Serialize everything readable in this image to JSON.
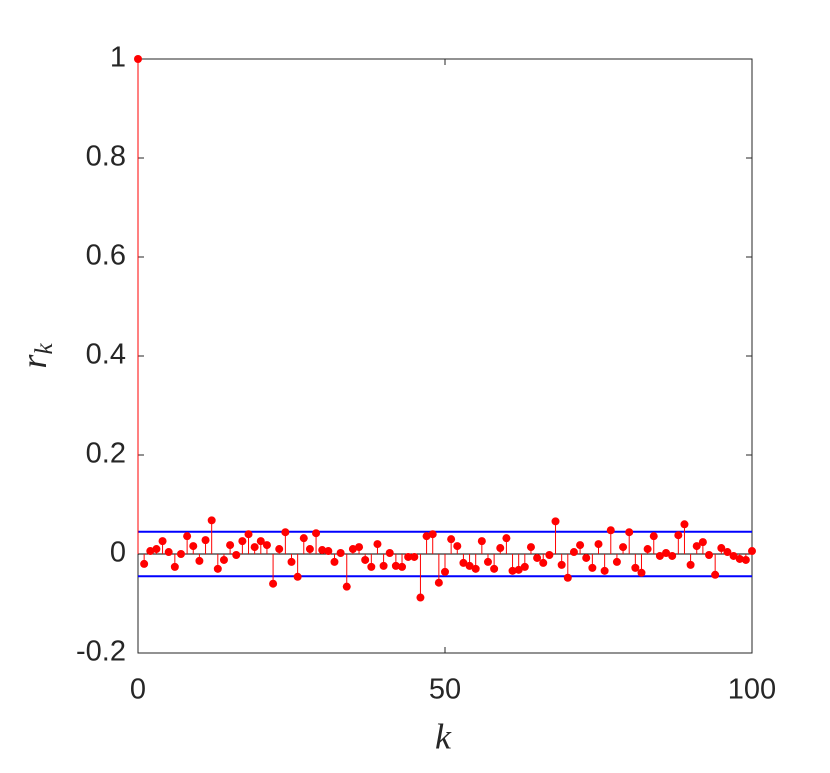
{
  "chart_data": {
    "type": "stem",
    "xlabel": "k",
    "ylabel": "r",
    "ylabel_sub": "k",
    "x": [
      0,
      1,
      2,
      3,
      4,
      5,
      6,
      7,
      8,
      9,
      10,
      11,
      12,
      13,
      14,
      15,
      16,
      17,
      18,
      19,
      20,
      21,
      22,
      23,
      24,
      25,
      26,
      27,
      28,
      29,
      30,
      31,
      32,
      33,
      34,
      35,
      36,
      37,
      38,
      39,
      40,
      41,
      42,
      43,
      44,
      45,
      46,
      47,
      48,
      49,
      50,
      51,
      52,
      53,
      54,
      55,
      56,
      57,
      58,
      59,
      60,
      61,
      62,
      63,
      64,
      65,
      66,
      67,
      68,
      69,
      70,
      71,
      72,
      73,
      74,
      75,
      76,
      77,
      78,
      79,
      80,
      81,
      82,
      83,
      84,
      85,
      86,
      87,
      88,
      89,
      90,
      91,
      92,
      93,
      94,
      95,
      96,
      97,
      98,
      99,
      100
    ],
    "series": [
      {
        "color": "#ff0000",
        "values": [
          1,
          -0.02,
          0.006,
          0.01,
          0.026,
          0.004,
          -0.026,
          0,
          0.036,
          0.016,
          -0.014,
          0.028,
          0.068,
          -0.03,
          -0.012,
          0.018,
          -0.002,
          0.026,
          0.04,
          0.014,
          0.026,
          0.018,
          -0.06,
          0.01,
          0.044,
          -0.016,
          -0.046,
          0.032,
          0.01,
          0.042,
          0.008,
          0.006,
          -0.016,
          0.002,
          -0.066,
          0.01,
          0.014,
          -0.012,
          -0.026,
          0.02,
          -0.024,
          0.002,
          -0.024,
          -0.026,
          -0.006,
          -0.006,
          -0.088,
          0.036,
          0.04,
          -0.058,
          -0.036,
          0.03,
          0.016,
          -0.018,
          -0.024,
          -0.03,
          0.026,
          -0.016,
          -0.03,
          0.012,
          0.032,
          -0.034,
          -0.032,
          -0.026,
          0.014,
          -0.008,
          -0.018,
          -0.002,
          0.066,
          -0.022,
          -0.048,
          0.004,
          0.018,
          -0.008,
          -0.028,
          0.02,
          -0.034,
          0.048,
          -0.016,
          0.014,
          0.044,
          -0.028,
          -0.038,
          0.01,
          0.036,
          -0.004,
          0.002,
          -0.004,
          0.038,
          0.06,
          -0.022,
          0.016,
          0.024,
          -0.002,
          -0.042,
          0.012,
          0.004,
          -0.004,
          -0.01,
          -0.012,
          0.006
        ]
      }
    ],
    "bounds": [
      0.045,
      -0.045
    ],
    "bounds_color": "#0000ff",
    "xlim": [
      0,
      100
    ],
    "xticks": [
      0,
      50,
      100
    ],
    "ylim": [
      -0.2,
      1
    ],
    "yticks": [
      -0.2,
      0,
      0.2,
      0.4,
      0.6,
      0.8,
      1
    ]
  }
}
